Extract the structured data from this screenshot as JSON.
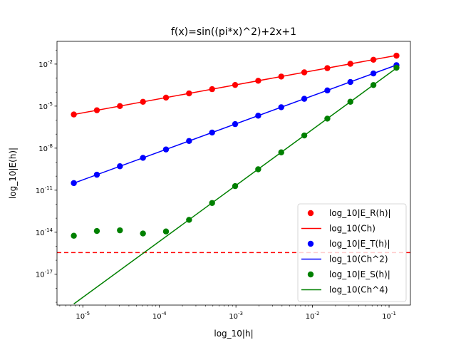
{
  "chart_data": {
    "type": "scatter",
    "title": "f(x)=sin((pi*x)^2)+2x+1",
    "xlabel": "log_10|h|",
    "ylabel": "log_10|E(h)|",
    "xscale": "log",
    "yscale": "log",
    "xlim": [
      4.6e-06,
      0.19
    ],
    "ylim": [
      6.3e-20,
      0.42
    ],
    "xticks": [
      1e-05,
      0.0001,
      0.001,
      0.01,
      0.1
    ],
    "xtick_labels": [
      "10^-5",
      "10^-4",
      "10^-3",
      "10^-2",
      "10^-1"
    ],
    "yticks": [
      1e-17,
      1e-14,
      1e-11,
      1e-08,
      1e-05,
      0.01
    ],
    "ytick_labels": [
      "10^-17",
      "10^-14",
      "10^-11",
      "10^-8",
      "10^-5",
      "10^-2"
    ],
    "grid": false,
    "legend_position": "lower right",
    "h": [
      0.125,
      0.0625,
      0.03125,
      0.015625,
      0.0078125,
      0.00390625,
      0.001953125,
      0.0009765625,
      0.00048828125,
      0.000244140625,
      0.0001220703125,
      6.103515625e-05,
      3.0517578125e-05,
      1.52587890625e-05,
      7.62939453125e-06
    ],
    "series": [
      {
        "name": "log_10|E_R(h)|",
        "kind": "markers",
        "color": "#ff0000",
        "x": [
          0.125,
          0.0625,
          0.03125,
          0.015625,
          0.0078125,
          0.00390625,
          0.001953125,
          0.0009765625,
          0.00048828125,
          0.000244140625,
          0.0001220703125,
          6.103515625e-05,
          3.0517578125e-05,
          1.52587890625e-05,
          7.62939453125e-06
        ],
        "y": [
          0.0398,
          0.0204,
          0.0105,
          0.00513,
          0.00257,
          0.00129,
          0.000646,
          0.000324,
          0.000162,
          8.1e-05,
          4.05e-05,
          2.03e-05,
          1.01e-05,
          5.07e-06,
          2.53e-06
        ]
      },
      {
        "name": "log_10(Ch)",
        "kind": "line",
        "color": "#ff0000",
        "x": [
          0.125,
          7.62939453125e-06
        ],
        "y": [
          0.0415,
          2.53e-06
        ]
      },
      {
        "name": "log_10|E_T(h)|",
        "kind": "markers",
        "color": "#0000ff",
        "x": [
          0.125,
          0.0625,
          0.03125,
          0.015625,
          0.0078125,
          0.00390625,
          0.001953125,
          0.0009765625,
          0.00048828125,
          0.000244140625,
          0.0001220703125,
          6.103515625e-05,
          3.0517578125e-05,
          1.52587890625e-05,
          7.62939453125e-06
        ],
        "y": [
          0.0084,
          0.00214,
          0.000524,
          0.000132,
          3.32e-05,
          8.3e-06,
          2.08e-06,
          5.2e-07,
          1.3e-07,
          3.25e-08,
          8.1e-09,
          2.03e-09,
          5.1e-10,
          1.27e-10,
          3.2e-11
        ]
      },
      {
        "name": "log_10(Ch^2)",
        "kind": "line",
        "color": "#0000ff",
        "x": [
          0.125,
          7.62939453125e-06
        ],
        "y": [
          0.00855,
          3.18e-11
        ]
      },
      {
        "name": "log_10|E_S(h)|",
        "kind": "markers",
        "color": "#008000",
        "x": [
          0.125,
          0.0625,
          0.03125,
          0.015625,
          0.0078125,
          0.00390625,
          0.001953125,
          0.0009765625,
          0.00048828125,
          0.000244140625,
          0.0001220703125,
          6.103515625e-05,
          3.0517578125e-05,
          1.52587890625e-05,
          7.62939453125e-06
        ],
        "y": [
          0.0055,
          0.00032,
          2.05e-05,
          1.28e-06,
          8e-08,
          5e-09,
          3.1e-10,
          1.95e-11,
          1.22e-12,
          7.6e-14,
          1.13e-14,
          8.1e-15,
          1.36e-14,
          1.22e-14,
          5.6e-15
        ]
      },
      {
        "name": "log_10(Ch^4)",
        "kind": "line",
        "color": "#008000",
        "x": [
          0.125,
          7.62939453125e-06
        ],
        "y": [
          0.0052,
          7.6e-20
        ]
      }
    ],
    "hline": {
      "y": 3.5e-16,
      "color": "#ff0000",
      "style": "dashed"
    }
  }
}
